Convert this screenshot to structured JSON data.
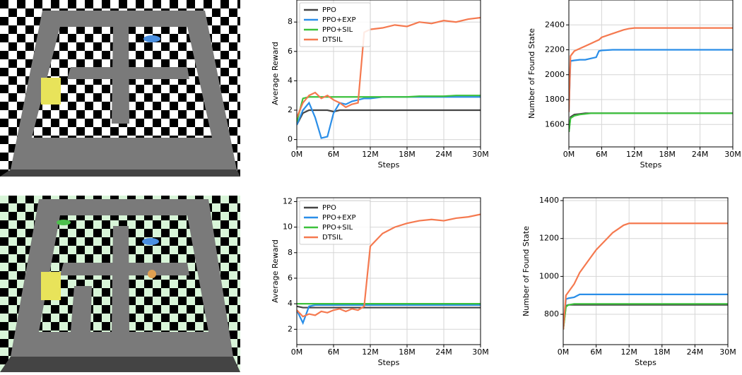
{
  "chart_data": [
    {
      "type": "line",
      "x_label": "Steps",
      "y_label": "Average Reward",
      "grid": true,
      "legend": "upper left",
      "x": [
        0,
        1,
        2,
        3,
        4,
        5,
        6,
        7,
        8,
        9,
        10,
        11,
        12,
        14,
        16,
        18,
        20,
        22,
        24,
        26,
        28,
        30
      ],
      "xlim": [
        0,
        30
      ],
      "xticks": [
        {
          "value": 0,
          "label": "0M"
        },
        {
          "value": 6,
          "label": "6M"
        },
        {
          "value": 12,
          "label": "12M"
        },
        {
          "value": 18,
          "label": "18M"
        },
        {
          "value": 24,
          "label": "24M"
        },
        {
          "value": 30,
          "label": "30M"
        }
      ],
      "ylim": [
        -0.5,
        9.5
      ],
      "yticks": [
        0,
        2,
        4,
        6,
        8
      ],
      "series": [
        {
          "name": "PPO",
          "color": "#444444",
          "values": [
            1,
            1.8,
            2,
            2,
            2,
            2,
            1.9,
            2,
            2,
            2,
            2,
            2,
            2,
            2,
            2,
            2,
            2,
            2,
            2,
            2,
            2,
            2
          ]
        },
        {
          "name": "PPO+EXP",
          "color": "#2a8ee8",
          "values": [
            1,
            2,
            2.5,
            1.5,
            0.1,
            0.2,
            1.8,
            2.5,
            2.4,
            2.6,
            2.7,
            2.8,
            2.8,
            2.9,
            2.9,
            2.9,
            2.9,
            2.9,
            2.9,
            2.9,
            2.9,
            2.9
          ]
        },
        {
          "name": "PPO+SIL",
          "color": "#3cc13c",
          "values": [
            1.2,
            2.8,
            2.9,
            2.9,
            2.9,
            2.9,
            2.9,
            2.9,
            2.9,
            2.9,
            2.9,
            2.9,
            2.9,
            2.9,
            2.9,
            2.9,
            2.95,
            2.95,
            2.95,
            3,
            3,
            3
          ]
        },
        {
          "name": "DTSIL",
          "color": "#f5794f",
          "values": [
            1.5,
            2.5,
            3,
            3.2,
            2.8,
            3,
            2.7,
            2.5,
            2.2,
            2.4,
            2.5,
            7.3,
            7.5,
            7.6,
            7.8,
            7.7,
            8,
            7.9,
            8.1,
            8,
            8.2,
            8.3
          ]
        }
      ]
    },
    {
      "type": "line",
      "x_label": "Steps",
      "y_label": "Number of Found State",
      "grid": true,
      "x": [
        0,
        0.3,
        1,
        2,
        3,
        4,
        5,
        5.5,
        6,
        8,
        10,
        11,
        12,
        15,
        20,
        25,
        30
      ],
      "xlim": [
        0,
        30
      ],
      "xticks": [
        {
          "value": 0,
          "label": "0M"
        },
        {
          "value": 6,
          "label": "6M"
        },
        {
          "value": 12,
          "label": "12M"
        },
        {
          "value": 18,
          "label": "18M"
        },
        {
          "value": 24,
          "label": "24M"
        },
        {
          "value": 30,
          "label": "30M"
        }
      ],
      "ylim": [
        1420,
        2600
      ],
      "yticks": [
        1600,
        1800,
        2000,
        2200,
        2400
      ],
      "series": [
        {
          "color": "#444444",
          "values": [
            1540,
            1660,
            1680,
            1685,
            1690,
            1690,
            1690,
            1690,
            1690,
            1690,
            1690,
            1690,
            1690,
            1690,
            1690,
            1690,
            1690
          ]
        },
        {
          "color": "#2a8ee8",
          "values": [
            1700,
            2110,
            2115,
            2120,
            2120,
            2130,
            2140,
            2190,
            2195,
            2200,
            2200,
            2200,
            2200,
            2200,
            2200,
            2200,
            2200
          ]
        },
        {
          "color": "#3cc13c",
          "values": [
            1540,
            1650,
            1670,
            1680,
            1685,
            1690,
            1690,
            1690,
            1690,
            1690,
            1690,
            1690,
            1690,
            1690,
            1690,
            1690,
            1690
          ]
        },
        {
          "color": "#f5794f",
          "values": [
            1700,
            2150,
            2190,
            2210,
            2230,
            2250,
            2270,
            2280,
            2300,
            2330,
            2360,
            2370,
            2375,
            2375,
            2375,
            2375,
            2375
          ]
        }
      ]
    },
    {
      "type": "line",
      "x_label": "Steps",
      "y_label": "Average Reward",
      "grid": true,
      "legend": "upper left",
      "x": [
        0,
        1,
        2,
        3,
        4,
        5,
        6,
        7,
        8,
        9,
        10,
        11,
        12,
        14,
        16,
        18,
        20,
        22,
        24,
        26,
        28,
        30
      ],
      "xlim": [
        0,
        30
      ],
      "xticks": [
        {
          "value": 0,
          "label": "0M"
        },
        {
          "value": 6,
          "label": "6M"
        },
        {
          "value": 12,
          "label": "12M"
        },
        {
          "value": 18,
          "label": "18M"
        },
        {
          "value": 24,
          "label": "24M"
        },
        {
          "value": 30,
          "label": "30M"
        }
      ],
      "ylim": [
        0.8,
        12.3
      ],
      "yticks": [
        2,
        4,
        6,
        8,
        10,
        12
      ],
      "series": [
        {
          "name": "PPO",
          "color": "#444444",
          "values": [
            3.8,
            3.7,
            3.7,
            3.7,
            3.7,
            3.7,
            3.7,
            3.7,
            3.7,
            3.7,
            3.7,
            3.7,
            3.7,
            3.7,
            3.7,
            3.7,
            3.7,
            3.7,
            3.7,
            3.7,
            3.7,
            3.7
          ]
        },
        {
          "name": "PPO+EXP",
          "color": "#2a8ee8",
          "values": [
            3.5,
            2.5,
            3.8,
            3.9,
            3.9,
            3.9,
            3.9,
            3.9,
            3.9,
            3.9,
            3.9,
            3.9,
            3.9,
            3.9,
            3.9,
            3.9,
            3.9,
            3.9,
            3.9,
            3.9,
            3.9,
            3.9
          ]
        },
        {
          "name": "PPO+SIL",
          "color": "#3cc13c",
          "values": [
            4,
            4,
            4,
            4,
            4,
            4,
            4,
            4,
            4,
            4,
            4,
            4,
            4,
            4,
            4,
            4,
            4,
            4,
            4,
            4,
            4,
            4
          ]
        },
        {
          "name": "DTSIL",
          "color": "#f5794f",
          "values": [
            3.5,
            3,
            3.2,
            3.1,
            3.4,
            3.3,
            3.5,
            3.6,
            3.4,
            3.6,
            3.5,
            3.8,
            8.5,
            9.5,
            10,
            10.3,
            10.5,
            10.6,
            10.5,
            10.7,
            10.8,
            11
          ]
        }
      ]
    },
    {
      "type": "line",
      "x_label": "Steps",
      "y_label": "Number of Found State",
      "grid": true,
      "x": [
        0,
        0.5,
        1,
        2,
        3,
        4,
        5,
        6,
        7,
        8,
        9,
        10,
        11,
        12,
        15,
        20,
        25,
        30
      ],
      "xlim": [
        0,
        30
      ],
      "xticks": [
        {
          "value": 0,
          "label": "0M"
        },
        {
          "value": 6,
          "label": "6M"
        },
        {
          "value": 12,
          "label": "12M"
        },
        {
          "value": 18,
          "label": "18M"
        },
        {
          "value": 24,
          "label": "24M"
        },
        {
          "value": 30,
          "label": "30M"
        }
      ],
      "ylim": [
        640,
        1415
      ],
      "yticks": [
        800,
        1000,
        1200,
        1400
      ],
      "series": [
        {
          "color": "#444444",
          "values": [
            720,
            845,
            850,
            850,
            850,
            850,
            850,
            850,
            850,
            850,
            850,
            850,
            850,
            850,
            850,
            850,
            850,
            850
          ]
        },
        {
          "color": "#2a8ee8",
          "values": [
            720,
            880,
            885,
            890,
            905,
            905,
            905,
            905,
            905,
            905,
            905,
            905,
            905,
            905,
            905,
            905,
            905,
            905
          ]
        },
        {
          "color": "#3cc13c",
          "values": [
            720,
            840,
            850,
            855,
            855,
            855,
            855,
            855,
            855,
            855,
            855,
            855,
            855,
            855,
            855,
            855,
            855,
            855
          ]
        },
        {
          "color": "#f5794f",
          "values": [
            720,
            900,
            920,
            960,
            1020,
            1060,
            1100,
            1140,
            1170,
            1200,
            1230,
            1250,
            1270,
            1280,
            1280,
            1280,
            1280,
            1280
          ]
        }
      ]
    }
  ]
}
